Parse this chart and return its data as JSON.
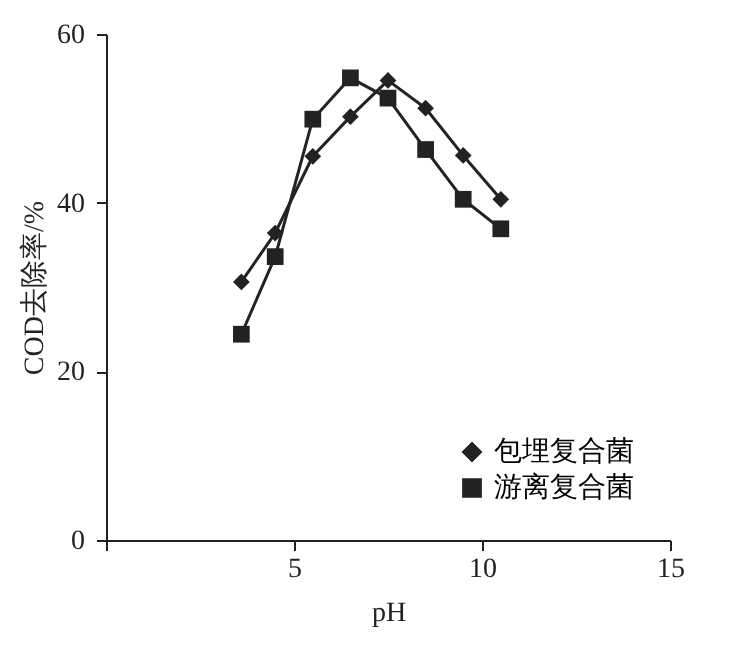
{
  "chart_data": {
    "type": "line",
    "xlabel": "pH",
    "ylabel": "COD去除率/%",
    "xlim": [
      0,
      15
    ],
    "xticks": [
      {
        "value": 0,
        "label": null
      },
      5,
      10,
      15
    ],
    "ylim": [
      0,
      60
    ],
    "yticks": [
      0,
      20,
      40,
      60
    ],
    "grid": false,
    "legend": "bottom right",
    "line_style": "solid",
    "series": [
      {
        "name": "包埋复合菌",
        "color": "#222222",
        "marker": "diamond",
        "x": [
          3.6,
          4.5,
          5.5,
          6.5,
          7.5,
          8.5,
          9.5,
          10.5
        ],
        "values": [
          30.6,
          36.4,
          45.5,
          50.2,
          54.5,
          51.2,
          45.6,
          40.4
        ]
      },
      {
        "name": "游离复合菌",
        "color": "#222222",
        "marker": "square",
        "x": [
          3.6,
          4.5,
          5.5,
          6.5,
          7.5,
          8.5,
          9.5,
          10.5
        ],
        "values": [
          24.4,
          33.6,
          49.9,
          54.8,
          52.4,
          46.3,
          40.4,
          36.9
        ]
      }
    ]
  }
}
